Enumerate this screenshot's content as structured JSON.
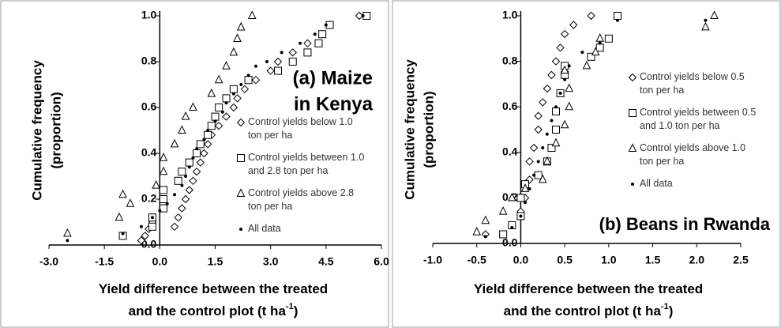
{
  "chart_data": [
    {
      "type": "scatter",
      "y_label": [
        "Cumulative frequency",
        "(proportion)"
      ],
      "x_label": {
        "lines": [
          "Yield difference between the treated",
          "and the control plot (t ha"
        ],
        "superscript": "-1",
        "suffix": ")"
      },
      "annotation": [
        "(a) Maize",
        "in Kenya"
      ],
      "xlim": [
        -3,
        6
      ],
      "ylim": [
        0,
        1
      ],
      "xticks": [
        {
          "value": -3,
          "label": "-3.0"
        },
        -1.5,
        {
          "value": 0,
          "label": "0.0"
        },
        1.5,
        {
          "value": 3,
          "label": "3.0"
        },
        4.5,
        {
          "value": 6,
          "label": "6.0"
        }
      ],
      "yticks": [
        {
          "value": 0,
          "label": "0.0"
        },
        0.2,
        0.4,
        0.6,
        0.8,
        {
          "value": 1,
          "label": "1.0"
        }
      ],
      "color": "#000000",
      "series": [
        {
          "name": "Control yields below 1.0 ton per ha",
          "marker": "diamond",
          "x": [
            -0.5,
            -0.4,
            -0.3,
            -0.2,
            0.4,
            0.5,
            0.6,
            0.7,
            0.8,
            0.9,
            1.0,
            1.1,
            1.2,
            1.3,
            1.4,
            1.6,
            1.8,
            2.0,
            2.1,
            2.3,
            2.6,
            3.0,
            3.2,
            3.6,
            4.0,
            4.4,
            4.6,
            5.4
          ],
          "values": [
            0.02,
            0.04,
            0.07,
            0.1,
            0.08,
            0.12,
            0.16,
            0.2,
            0.24,
            0.28,
            0.32,
            0.36,
            0.4,
            0.44,
            0.48,
            0.52,
            0.56,
            0.6,
            0.64,
            0.68,
            0.72,
            0.76,
            0.8,
            0.84,
            0.88,
            0.92,
            0.96,
            1.0
          ]
        },
        {
          "name": "Control yields between 1.0 and 2.8 ton per ha",
          "marker": "square",
          "x": [
            -1.0,
            -0.2,
            -0.2,
            0.1,
            0.1,
            0.1,
            0.5,
            0.6,
            0.8,
            1.0,
            1.1,
            1.3,
            1.4,
            1.5,
            1.6,
            1.8,
            2.0,
            2.4,
            3.2,
            3.6,
            4.0,
            4.3,
            4.4,
            4.6,
            5.6
          ],
          "values": [
            0.04,
            0.08,
            0.12,
            0.16,
            0.2,
            0.24,
            0.28,
            0.32,
            0.36,
            0.4,
            0.44,
            0.48,
            0.52,
            0.56,
            0.6,
            0.64,
            0.68,
            0.72,
            0.76,
            0.8,
            0.84,
            0.88,
            0.92,
            0.96,
            1.0
          ]
        },
        {
          "name": "Control yields above 2.8 ton per ha",
          "marker": "triangle",
          "x": [
            -2.5,
            -1.1,
            -0.8,
            -1.0,
            -0.1,
            0.1,
            0.1,
            0.4,
            0.6,
            0.7,
            0.9,
            1.4,
            1.6,
            1.8,
            2.0,
            2.1,
            2.2,
            2.5
          ],
          "values": [
            0.05,
            0.12,
            0.18,
            0.22,
            0.26,
            0.32,
            0.38,
            0.44,
            0.5,
            0.56,
            0.6,
            0.66,
            0.72,
            0.78,
            0.84,
            0.9,
            0.95,
            1.0
          ]
        },
        {
          "name": "All data",
          "marker": "dot",
          "x": [
            -2.5,
            -1.0,
            -0.5,
            -0.2,
            0,
            0.2,
            0.4,
            0.6,
            0.7,
            0.8,
            0.9,
            1.0,
            1.2,
            1.3,
            1.5,
            1.7,
            1.8,
            2.0,
            2.2,
            2.4,
            2.6,
            2.9,
            3.3,
            3.8,
            4.2,
            4.5,
            5.5
          ],
          "values": [
            0.02,
            0.05,
            0.08,
            0.12,
            0.15,
            0.18,
            0.22,
            0.26,
            0.3,
            0.34,
            0.38,
            0.42,
            0.46,
            0.5,
            0.54,
            0.58,
            0.62,
            0.66,
            0.7,
            0.74,
            0.78,
            0.8,
            0.84,
            0.88,
            0.92,
            0.96,
            1.0
          ]
        }
      ]
    },
    {
      "type": "scatter",
      "y_label": [
        "Cumulative frequency",
        "(proportion)"
      ],
      "x_label": {
        "lines": [
          "Yield difference between the treated",
          "and the control plot (t ha"
        ],
        "superscript": "-1",
        "suffix": ")"
      },
      "annotation": [
        "(b) Beans in Rwanda"
      ],
      "xlim": [
        -1,
        2.5
      ],
      "ylim": [
        0,
        1
      ],
      "xticks": [
        {
          "value": -1,
          "label": "-1.0"
        },
        -0.5,
        {
          "value": 0,
          "label": "0.0"
        },
        0.5,
        {
          "value": 1,
          "label": "1.0"
        },
        1.5,
        {
          "value": 2,
          "label": "2.0"
        },
        2.5
      ],
      "yticks": [
        {
          "value": 0,
          "label": "0.0"
        },
        0.2,
        0.4,
        0.6,
        0.8,
        {
          "value": 1,
          "label": "1.0"
        }
      ],
      "color": "#000000",
      "series": [
        {
          "name": "Control yields below 0.5 ton per ha",
          "marker": "diamond",
          "x": [
            -0.4,
            -0.1,
            0.0,
            0.05,
            0.1,
            0.1,
            0.15,
            0.2,
            0.2,
            0.25,
            0.3,
            0.35,
            0.4,
            0.45,
            0.5,
            0.6,
            0.8
          ],
          "values": [
            0.04,
            0.08,
            0.14,
            0.2,
            0.28,
            0.36,
            0.42,
            0.5,
            0.56,
            0.62,
            0.68,
            0.74,
            0.8,
            0.86,
            0.92,
            0.96,
            1.0
          ]
        },
        {
          "name": "Control yields between 0.5 and 1.0 ton per ha",
          "marker": "square",
          "x": [
            -0.2,
            -0.1,
            0.0,
            0.0,
            0.05,
            0.2,
            0.3,
            0.35,
            0.4,
            0.4,
            0.45,
            0.5,
            0.5,
            0.8,
            0.9,
            1.0,
            1.1
          ],
          "values": [
            0.04,
            0.08,
            0.12,
            0.2,
            0.26,
            0.3,
            0.36,
            0.42,
            0.5,
            0.58,
            0.66,
            0.74,
            0.78,
            0.82,
            0.86,
            0.9,
            1.0
          ]
        },
        {
          "name": "Control yields above 1.0 ton per ha",
          "marker": "triangle",
          "x": [
            -0.5,
            -0.4,
            -0.2,
            -0.1,
            0.05,
            0.25,
            0.3,
            0.4,
            0.5,
            0.55,
            0.55,
            0.5,
            0.75,
            0.85,
            0.9,
            2.1,
            2.2
          ],
          "values": [
            0.05,
            0.1,
            0.14,
            0.2,
            0.24,
            0.28,
            0.36,
            0.44,
            0.52,
            0.6,
            0.68,
            0.76,
            0.78,
            0.84,
            0.9,
            0.95,
            1.0
          ]
        },
        {
          "name": "All data",
          "marker": "dot",
          "x": [
            -0.4,
            -0.1,
            0,
            0.05,
            0.1,
            0.15,
            0.2,
            0.25,
            0.3,
            0.35,
            0.4,
            0.45,
            0.5,
            0.55,
            0.7,
            0.9,
            1.1,
            2.1
          ],
          "values": [
            0.03,
            0.07,
            0.12,
            0.18,
            0.24,
            0.3,
            0.36,
            0.42,
            0.48,
            0.54,
            0.6,
            0.66,
            0.72,
            0.78,
            0.84,
            0.88,
            0.98,
            0.98
          ]
        }
      ]
    }
  ]
}
